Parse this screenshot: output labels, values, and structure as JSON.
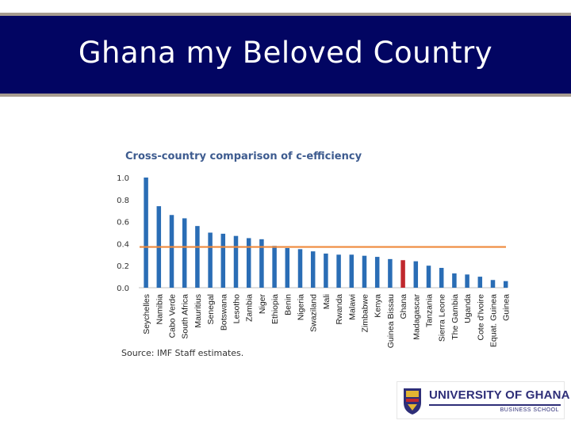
{
  "slide": {
    "title": "Ghana my Beloved Country"
  },
  "chart_data": {
    "type": "bar",
    "title": "Cross-country comparison of c-efficiency",
    "source": "Source: IMF Staff estimates.",
    "ylim": [
      0,
      1.0
    ],
    "yticks": [
      "1.0",
      "0.8",
      "0.6",
      "0.4",
      "0.2",
      "0.0"
    ],
    "ytick_values": [
      1.0,
      0.8,
      0.6,
      0.4,
      0.2,
      0.0
    ],
    "reference_line": 0.37,
    "highlight": "Ghana",
    "colors": {
      "bar": "#2a6db5",
      "highlight": "#c0282d",
      "reference": "#ef8a3c"
    },
    "categories": [
      "Seychelles",
      "Namibia",
      "Cabo Verde",
      "South Africa",
      "Mauritius",
      "Senegal",
      "Botswana",
      "Lesotho",
      "Zambia",
      "Niger",
      "Ethiopia",
      "Benin",
      "Nigeria",
      "Swaziland",
      "Mali",
      "Rwanda",
      "Malawi",
      "Zimbabwe",
      "Kenya",
      "Guinea Bissau",
      "Ghana",
      "Madagascar",
      "Tanzania",
      "Sierra Leone",
      "The Gambia",
      "Uganda",
      "Cote d'Ivoire",
      "Equat. Guinea",
      "Guinea"
    ],
    "values": [
      1.0,
      0.74,
      0.66,
      0.63,
      0.56,
      0.5,
      0.49,
      0.47,
      0.45,
      0.44,
      0.38,
      0.36,
      0.35,
      0.33,
      0.31,
      0.3,
      0.3,
      0.29,
      0.28,
      0.26,
      0.25,
      0.24,
      0.2,
      0.18,
      0.13,
      0.12,
      0.1,
      0.07,
      0.06
    ]
  },
  "logo": {
    "name": "UNIVERSITY OF GHANA",
    "sub": "BUSINESS SCHOOL"
  }
}
